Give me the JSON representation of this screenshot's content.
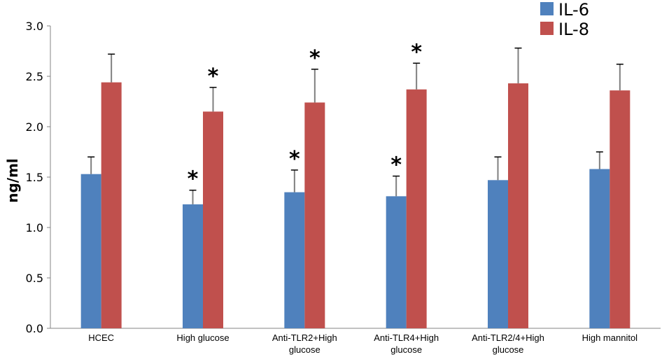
{
  "chart_data": {
    "type": "bar",
    "title": "",
    "xlabel": "",
    "ylabel": "ng/ml",
    "ylim": [
      0,
      3.0
    ],
    "yticks": [
      "0.0",
      "0.5",
      "1.0",
      "1.5",
      "2.0",
      "2.5",
      "3.0"
    ],
    "ytick_values": [
      0,
      0.5,
      1.0,
      1.5,
      2.0,
      2.5,
      3.0
    ],
    "grid": false,
    "legend_position": "top-right",
    "categories": [
      [
        "HCEC"
      ],
      [
        "High glucose"
      ],
      [
        "Anti-TLR2+High",
        "glucose"
      ],
      [
        "Anti-TLR4+High",
        "glucose"
      ],
      [
        "Anti-TLR2/4+High",
        "glucose"
      ],
      [
        "High mannitol"
      ]
    ],
    "series": [
      {
        "name": "IL-6",
        "color": "#4f81bd",
        "values": [
          1.53,
          1.23,
          1.35,
          1.31,
          1.47,
          1.58
        ],
        "errors": [
          0.17,
          0.14,
          0.22,
          0.2,
          0.23,
          0.17
        ],
        "significant": [
          false,
          true,
          true,
          true,
          false,
          false
        ]
      },
      {
        "name": "IL-8",
        "color": "#c0504d",
        "values": [
          2.44,
          2.15,
          2.24,
          2.37,
          2.43,
          2.36
        ],
        "errors": [
          0.28,
          0.24,
          0.33,
          0.26,
          0.35,
          0.26
        ],
        "significant": [
          false,
          true,
          true,
          true,
          false,
          false
        ]
      }
    ],
    "significance_marker": "*",
    "error_bar_color": "#7f7f7f"
  }
}
